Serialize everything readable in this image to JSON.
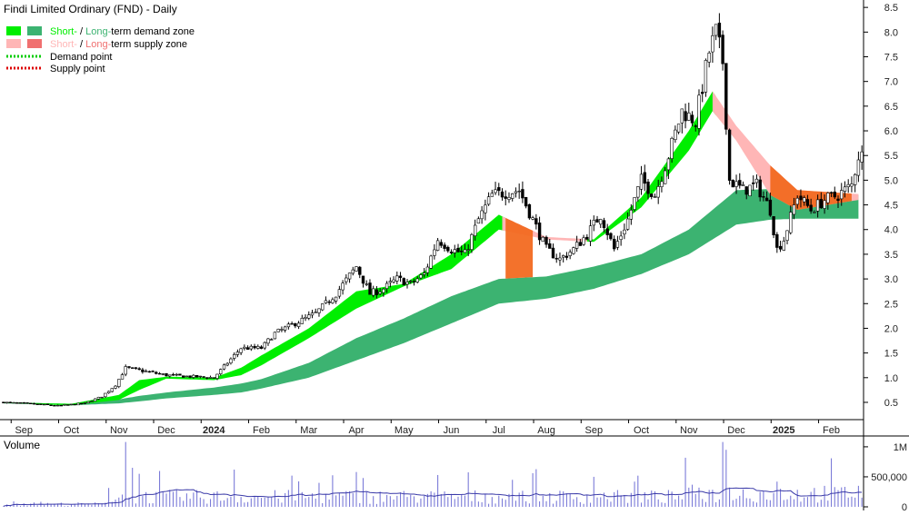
{
  "chart_data": {
    "type": "candlestick",
    "title": "Findi Limited Ordinary (FND) - Daily",
    "price_axis": {
      "ticks": [
        "0.5",
        "1.0",
        "1.5",
        "2.0",
        "2.5",
        "3.0",
        "3.5",
        "4.0",
        "4.5",
        "5.0",
        "5.5",
        "6.0",
        "6.5",
        "7.0",
        "7.5",
        "8.0",
        "8.5"
      ],
      "range": [
        0.15,
        8.65
      ]
    },
    "x_axis": {
      "labels": [
        "Sep",
        "Oct",
        "Nov",
        "Dec",
        "2024",
        "Feb",
        "Mar",
        "Apr",
        "May",
        "Jun",
        "Jul",
        "Aug",
        "Sep",
        "Oct",
        "Nov",
        "Dec",
        "2025",
        "Feb"
      ],
      "label_index": [
        6,
        20,
        34,
        48,
        62,
        76,
        90,
        104,
        118,
        132,
        146,
        160,
        174,
        188,
        202,
        216,
        230,
        244
      ],
      "bold": [
        "2024",
        "2025"
      ]
    },
    "legend": {
      "zone_demand": {
        "short": "Short-",
        "sep": " / ",
        "long": "Long-",
        "rest": "term demand zone"
      },
      "zone_supply": {
        "short": "Short-",
        "sep": " / ",
        "long": "Long-",
        "rest": "term supply zone"
      },
      "demand_point": "Demand point",
      "supply_point": "Supply point",
      "placement": "top-left"
    },
    "colors": {
      "short_demand": "#00ee00",
      "long_demand": "#3cb371",
      "short_supply": "#ffb6b6",
      "long_supply": "#f07070",
      "supply_overlap": "#f26a21",
      "demand_point": "#00cc00",
      "supply_point": "#dd0000",
      "volume": "#7b7bd8",
      "volume_avg": "#3a3aa8"
    },
    "price_anchors": [
      {
        "i": 0,
        "p": 0.5
      },
      {
        "i": 8,
        "p": 0.47
      },
      {
        "i": 16,
        "p": 0.43
      },
      {
        "i": 24,
        "p": 0.48
      },
      {
        "i": 29,
        "p": 0.62
      },
      {
        "i": 33,
        "p": 0.85
      },
      {
        "i": 36,
        "p": 1.2
      },
      {
        "i": 40,
        "p": 1.15
      },
      {
        "i": 48,
        "p": 1.05
      },
      {
        "i": 56,
        "p": 1.02
      },
      {
        "i": 62,
        "p": 1.0
      },
      {
        "i": 66,
        "p": 1.3
      },
      {
        "i": 70,
        "p": 1.6
      },
      {
        "i": 76,
        "p": 1.6
      },
      {
        "i": 80,
        "p": 1.9
      },
      {
        "i": 86,
        "p": 2.1
      },
      {
        "i": 92,
        "p": 2.3
      },
      {
        "i": 98,
        "p": 2.7
      },
      {
        "i": 104,
        "p": 3.25
      },
      {
        "i": 108,
        "p": 2.7
      },
      {
        "i": 112,
        "p": 2.8
      },
      {
        "i": 116,
        "p": 3.0
      },
      {
        "i": 120,
        "p": 2.9
      },
      {
        "i": 124,
        "p": 3.1
      },
      {
        "i": 128,
        "p": 3.8
      },
      {
        "i": 132,
        "p": 3.6
      },
      {
        "i": 136,
        "p": 3.5
      },
      {
        "i": 140,
        "p": 4.2
      },
      {
        "i": 144,
        "p": 4.7
      },
      {
        "i": 148,
        "p": 4.75
      },
      {
        "i": 152,
        "p": 4.8
      },
      {
        "i": 156,
        "p": 4.2
      },
      {
        "i": 160,
        "p": 3.6
      },
      {
        "i": 164,
        "p": 3.4
      },
      {
        "i": 168,
        "p": 3.6
      },
      {
        "i": 172,
        "p": 3.9
      },
      {
        "i": 176,
        "p": 4.3
      },
      {
        "i": 180,
        "p": 3.6
      },
      {
        "i": 184,
        "p": 4.2
      },
      {
        "i": 188,
        "p": 5.0
      },
      {
        "i": 192,
        "p": 4.7
      },
      {
        "i": 196,
        "p": 5.5
      },
      {
        "i": 200,
        "p": 6.4
      },
      {
        "i": 204,
        "p": 6.2
      },
      {
        "i": 208,
        "p": 7.6
      },
      {
        "i": 210,
        "p": 8.0
      },
      {
        "i": 212,
        "p": 7.4
      },
      {
        "i": 214,
        "p": 5.0
      },
      {
        "i": 218,
        "p": 4.8
      },
      {
        "i": 222,
        "p": 4.9
      },
      {
        "i": 226,
        "p": 4.4
      },
      {
        "i": 228,
        "p": 3.6
      },
      {
        "i": 230,
        "p": 3.8
      },
      {
        "i": 234,
        "p": 4.7
      },
      {
        "i": 238,
        "p": 4.4
      },
      {
        "i": 242,
        "p": 4.6
      },
      {
        "i": 246,
        "p": 4.7
      },
      {
        "i": 250,
        "p": 4.9
      },
      {
        "i": 252,
        "p": 5.5
      }
    ],
    "zone_anchors": [
      {
        "i": 0,
        "st": 0.5,
        "sb": 0.49,
        "lt": 0.5,
        "lb": 0.48
      },
      {
        "i": 20,
        "st": 0.47,
        "sb": 0.44,
        "lt": 0.47,
        "lb": 0.44
      },
      {
        "i": 34,
        "st": 0.65,
        "sb": 0.55,
        "lt": 0.56,
        "lb": 0.48
      },
      {
        "i": 40,
        "st": 0.95,
        "sb": 0.75,
        "lt": 0.63,
        "lb": 0.52
      },
      {
        "i": 48,
        "st": 1.02,
        "sb": 0.98,
        "lt": 0.7,
        "lb": 0.58
      },
      {
        "i": 62,
        "st": 1.0,
        "sb": 0.95,
        "lt": 0.8,
        "lb": 0.65
      },
      {
        "i": 70,
        "st": 1.2,
        "sb": 1.05,
        "lt": 0.88,
        "lb": 0.7
      },
      {
        "i": 76,
        "st": 1.45,
        "sb": 1.25,
        "lt": 0.97,
        "lb": 0.78
      },
      {
        "i": 90,
        "st": 2.0,
        "sb": 1.8,
        "lt": 1.3,
        "lb": 1.0
      },
      {
        "i": 104,
        "st": 2.75,
        "sb": 2.4,
        "lt": 1.8,
        "lb": 1.35
      },
      {
        "i": 118,
        "st": 2.9,
        "sb": 2.85,
        "lt": 2.2,
        "lb": 1.7
      },
      {
        "i": 132,
        "st": 3.5,
        "sb": 3.2,
        "lt": 2.65,
        "lb": 2.1
      },
      {
        "i": 146,
        "st": 4.3,
        "sb": 4.0,
        "lt": 3.0,
        "lb": 2.5
      },
      {
        "i": 160,
        "st": 3.85,
        "sb": 3.8,
        "lt": 3.05,
        "lb": 2.6
      },
      {
        "i": 174,
        "st": 3.8,
        "sb": 3.75,
        "lt": 3.25,
        "lb": 2.8
      },
      {
        "i": 188,
        "st": 4.65,
        "sb": 4.45,
        "lt": 3.5,
        "lb": 3.1
      },
      {
        "i": 202,
        "st": 6.0,
        "sb": 5.6,
        "lt": 4.0,
        "lb": 3.5
      },
      {
        "i": 209,
        "st": 6.8,
        "sb": 6.4,
        "lt": 4.4,
        "lb": 3.8
      },
      {
        "i": 216,
        "st": 6.1,
        "sb": 5.8,
        "lt": 4.8,
        "lb": 4.1
      },
      {
        "i": 226,
        "st": 5.3,
        "sb": 4.7,
        "lt": 4.82,
        "lb": 4.2
      },
      {
        "i": 234,
        "st": 4.8,
        "sb": 4.4,
        "lt": 4.75,
        "lb": 4.22
      },
      {
        "i": 252,
        "st": 4.72,
        "sb": 4.6,
        "lt": 4.7,
        "lb": 4.22
      }
    ],
    "supply_periods": [
      [
        148,
        160
      ],
      [
        160,
        172
      ],
      [
        210,
        226
      ],
      [
        226,
        252
      ]
    ],
    "volume_axis": {
      "ticks": [
        "0",
        "500,000",
        "1M"
      ],
      "max": 1150000
    },
    "volume_label": "Volume",
    "volume_spikes": [
      {
        "i": 36,
        "v": 1080000
      },
      {
        "i": 38,
        "v": 650000
      },
      {
        "i": 40,
        "v": 550000
      },
      {
        "i": 68,
        "v": 620000
      },
      {
        "i": 85,
        "v": 520000
      },
      {
        "i": 104,
        "v": 580000
      },
      {
        "i": 106,
        "v": 480000
      },
      {
        "i": 128,
        "v": 530000
      },
      {
        "i": 150,
        "v": 450000
      },
      {
        "i": 156,
        "v": 560000
      },
      {
        "i": 174,
        "v": 500000
      },
      {
        "i": 186,
        "v": 420000
      },
      {
        "i": 212,
        "v": 1080000
      },
      {
        "i": 213,
        "v": 950000
      },
      {
        "i": 228,
        "v": 420000
      },
      {
        "i": 252,
        "v": 350000
      }
    ]
  }
}
